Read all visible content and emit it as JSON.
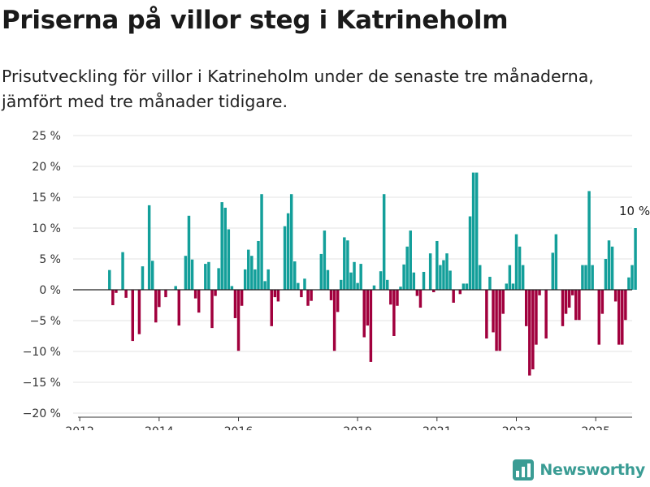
{
  "header": {
    "title": "Priserna på villor steg i Katrineholm",
    "subtitle": "Prisutveckling för villor i Katrineholm under de senaste tre månaderna, jämfört med tre månader tidigare."
  },
  "brand": {
    "name": "Newsworthy",
    "icon": "newsworthy-logo-icon",
    "color": "#3a9c94"
  },
  "colors": {
    "positive": "#139f9a",
    "negative": "#a1003d",
    "grid": "#e3e3e3",
    "zero_line": "#222222"
  },
  "chart_data": {
    "type": "bar",
    "x_start": "2012-10",
    "x_interval": "month",
    "xlim": [
      "2011-11",
      "2025-12"
    ],
    "ylim": [
      -20,
      25
    ],
    "yticks": [
      -20,
      -15,
      -10,
      -5,
      0,
      5,
      10,
      15,
      20,
      25
    ],
    "ytick_labels": [
      "−20 %",
      "−15 %",
      "−10 %",
      "−5 %",
      "0 %",
      "5 %",
      "10 %",
      "15 %",
      "20 %",
      "25 %"
    ],
    "xticks": [
      "2012-01",
      "2014-01",
      "2016-01",
      "2019-01",
      "2021-01",
      "2023-01",
      "2025-01"
    ],
    "xtick_labels": [
      "2012",
      "2014",
      "2016",
      "2019",
      "2021",
      "2023",
      "2025"
    ],
    "grid": true,
    "positive_color": "#139f9a",
    "negative_color": "#a1003d",
    "values": [
      3.2,
      -2.5,
      -0.5,
      0,
      6.1,
      -1.3,
      0,
      -8.3,
      0,
      -7.2,
      3.8,
      0,
      13.7,
      4.7,
      -5.3,
      -2.8,
      0,
      -1.2,
      0,
      0,
      0.6,
      -5.8,
      0,
      5.5,
      12,
      4.9,
      -1.4,
      -3.7,
      0,
      4.2,
      4.5,
      -6.2,
      -1,
      3.5,
      14.2,
      13.3,
      9.8,
      0.6,
      -4.6,
      -9.9,
      -2.6,
      3.3,
      6.5,
      5.5,
      3.3,
      7.9,
      15.5,
      1.4,
      3.3,
      -5.9,
      -1.2,
      -1.9,
      0,
      10.3,
      12.4,
      15.5,
      4.6,
      1.1,
      -1.2,
      1.8,
      -2.6,
      -1.8,
      0,
      0,
      5.8,
      9.6,
      3.2,
      -1.7,
      -9.9,
      -3.6,
      1.6,
      8.5,
      8,
      2.8,
      4.5,
      1.1,
      4.2,
      -7.7,
      -5.8,
      -11.7,
      0.7,
      0,
      3,
      15.5,
      1.6,
      -2.4,
      -7.5,
      -2.6,
      0.5,
      4.1,
      7,
      9.6,
      2.8,
      -1,
      -2.9,
      2.9,
      0,
      5.9,
      -0.4,
      7.9,
      4,
      4.8,
      5.9,
      3.1,
      -2.1,
      0,
      -0.7,
      1,
      1,
      11.9,
      19,
      19,
      4,
      0,
      -7.9,
      2.1,
      -6.9,
      -9.9,
      -9.9,
      -3.9,
      1,
      4,
      1,
      9,
      7,
      4,
      -5.9,
      -13.9,
      -12.9,
      -8.9,
      -0.9,
      0,
      -7.9,
      0,
      6,
      9,
      0,
      -5.9,
      -3.9,
      -2.9,
      -0.9,
      -4.9,
      -4.9,
      4,
      4,
      16,
      4,
      0,
      -8.9,
      -3.9,
      5,
      8,
      7,
      -1.9,
      -8.9,
      -8.9,
      -4.9,
      2,
      4,
      10
    ],
    "annotations": [
      {
        "text": "10 %"
      }
    ]
  }
}
